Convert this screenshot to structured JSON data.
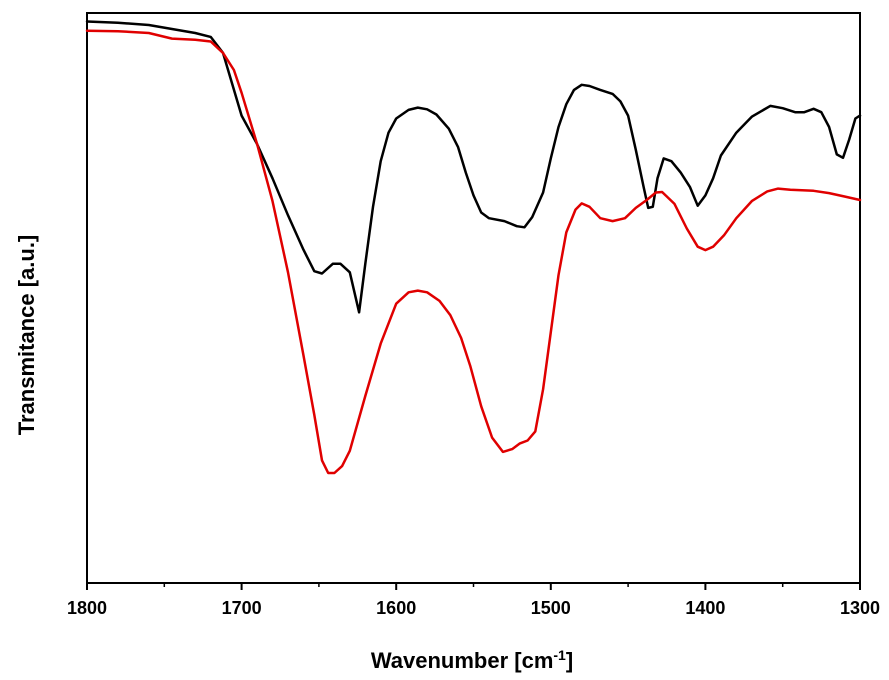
{
  "chart_data": {
    "type": "line",
    "xlabel": "Wavenumber [cm",
    "xlabel_sup": "-1",
    "xlabel_end": "]",
    "ylabel": "Transmitance [a.u.]",
    "xlim": [
      1800,
      1300
    ],
    "ylim": [
      0,
      1
    ],
    "x_reversed": true,
    "xticks": [
      1800,
      1700,
      1600,
      1500,
      1400,
      1300
    ],
    "yticks_shown": false,
    "grid": false,
    "legend": "none",
    "series": [
      {
        "color": "#000000",
        "x": [
          1800,
          1780,
          1760,
          1745,
          1730,
          1720,
          1712,
          1700,
          1690,
          1680,
          1670,
          1660,
          1653,
          1648,
          1641,
          1636,
          1630,
          1624,
          1620,
          1615,
          1610,
          1605,
          1600,
          1592,
          1586,
          1580,
          1574,
          1566,
          1560,
          1555,
          1550,
          1545,
          1540,
          1530,
          1522,
          1517,
          1512,
          1505,
          1500,
          1495,
          1490,
          1485,
          1480,
          1475,
          1468,
          1460,
          1455,
          1450,
          1445,
          1440,
          1437,
          1434,
          1431,
          1427,
          1422,
          1416,
          1410,
          1405,
          1400,
          1395,
          1390,
          1380,
          1370,
          1358,
          1350,
          1342,
          1336,
          1330,
          1325,
          1320,
          1315,
          1311,
          1307,
          1303,
          1300
        ],
        "y": [
          0.985,
          0.983,
          0.979,
          0.972,
          0.965,
          0.958,
          0.93,
          0.82,
          0.77,
          0.71,
          0.645,
          0.585,
          0.547,
          0.543,
          0.56,
          0.56,
          0.545,
          0.475,
          0.56,
          0.66,
          0.74,
          0.79,
          0.815,
          0.83,
          0.834,
          0.831,
          0.822,
          0.797,
          0.765,
          0.72,
          0.68,
          0.65,
          0.64,
          0.635,
          0.626,
          0.624,
          0.642,
          0.685,
          0.745,
          0.8,
          0.84,
          0.865,
          0.874,
          0.872,
          0.865,
          0.858,
          0.845,
          0.82,
          0.76,
          0.695,
          0.658,
          0.66,
          0.71,
          0.745,
          0.74,
          0.72,
          0.695,
          0.662,
          0.68,
          0.71,
          0.75,
          0.79,
          0.818,
          0.837,
          0.833,
          0.826,
          0.826,
          0.832,
          0.826,
          0.8,
          0.752,
          0.746,
          0.778,
          0.815,
          0.82
        ]
      },
      {
        "color": "#e00000",
        "x": [
          1800,
          1780,
          1760,
          1745,
          1730,
          1720,
          1712,
          1705,
          1700,
          1690,
          1680,
          1670,
          1660,
          1653,
          1648,
          1644,
          1640,
          1635,
          1630,
          1620,
          1610,
          1600,
          1592,
          1586,
          1580,
          1572,
          1565,
          1558,
          1552,
          1545,
          1538,
          1531,
          1525,
          1520,
          1515,
          1510,
          1505,
          1500,
          1495,
          1490,
          1484,
          1480,
          1475,
          1468,
          1460,
          1452,
          1445,
          1438,
          1432,
          1428,
          1420,
          1412,
          1405,
          1400,
          1395,
          1388,
          1380,
          1370,
          1360,
          1353,
          1345,
          1330,
          1320,
          1310,
          1300
        ],
        "y": [
          0.969,
          0.968,
          0.965,
          0.955,
          0.953,
          0.95,
          0.93,
          0.9,
          0.86,
          0.77,
          0.67,
          0.545,
          0.4,
          0.295,
          0.215,
          0.193,
          0.193,
          0.205,
          0.232,
          0.328,
          0.42,
          0.49,
          0.51,
          0.513,
          0.51,
          0.495,
          0.47,
          0.43,
          0.38,
          0.31,
          0.255,
          0.23,
          0.235,
          0.245,
          0.25,
          0.266,
          0.34,
          0.44,
          0.54,
          0.615,
          0.655,
          0.666,
          0.66,
          0.64,
          0.635,
          0.64,
          0.658,
          0.672,
          0.685,
          0.686,
          0.665,
          0.622,
          0.59,
          0.584,
          0.59,
          0.61,
          0.64,
          0.67,
          0.687,
          0.692,
          0.69,
          0.688,
          0.684,
          0.678,
          0.672
        ]
      }
    ]
  }
}
